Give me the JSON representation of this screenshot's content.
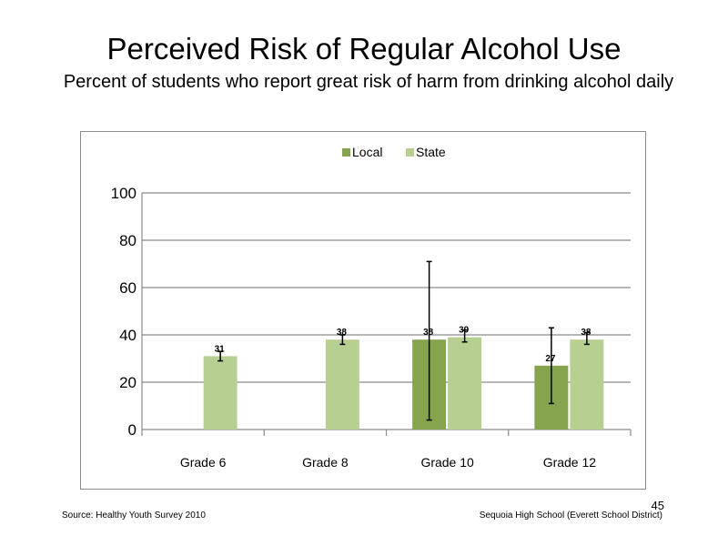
{
  "slide": {
    "title": "Perceived  Risk of Regular  Alcohol  Use",
    "subtitle": "Percent  of students  who report great risk of harm  from drinking  alcohol daily",
    "source": "Source: Healthy  Youth Survey 2010",
    "school": "Sequoia High  School (Everett School District)",
    "page_number": "45"
  },
  "chart_data": {
    "type": "bar",
    "categories": [
      "Grade 6",
      "Grade 8",
      "Grade 10",
      "Grade 12"
    ],
    "series": [
      {
        "name": "Local",
        "color": "#86a44e",
        "values": [
          null,
          null,
          38,
          27
        ],
        "labels": [
          "",
          "",
          "38",
          "27"
        ],
        "error_low": [
          null,
          null,
          4,
          11
        ],
        "error_high": [
          null,
          null,
          71,
          43
        ]
      },
      {
        "name": "State",
        "color": "#b7cf91",
        "values": [
          31,
          38,
          39,
          38
        ],
        "labels": [
          "31",
          "38",
          "39",
          "38"
        ],
        "error_low": [
          29,
          36,
          37,
          36
        ],
        "error_high": [
          33,
          40,
          42,
          41
        ]
      }
    ],
    "ylim": [
      0,
      100
    ],
    "yticks": [
      0,
      20,
      40,
      60,
      80,
      100
    ],
    "grid": true,
    "legend_position": "top-center"
  }
}
